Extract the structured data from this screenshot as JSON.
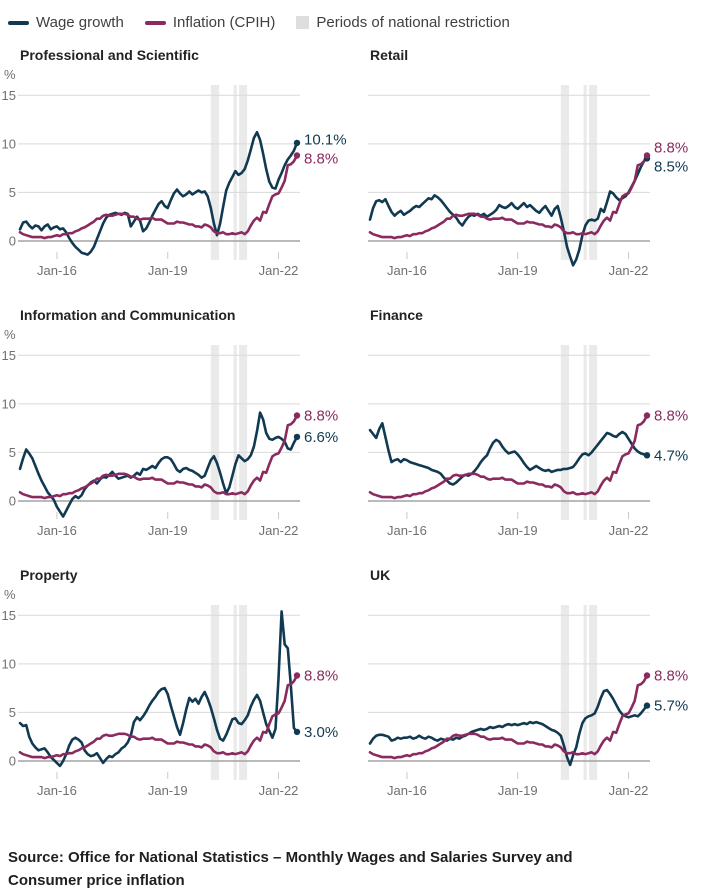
{
  "legend": {
    "items": [
      {
        "label": "Wage growth",
        "type": "line",
        "color": "#113a52"
      },
      {
        "label": "Inflation (CPIH)",
        "type": "line",
        "color": "#8a2a5e"
      },
      {
        "label": "Periods of national restriction",
        "type": "box",
        "color": "#dedede"
      }
    ]
  },
  "source": {
    "text": "Source: Office for National Statistics – Monthly Wages and Salaries Survey and Consumer price inflation"
  },
  "chart_data": {
    "type": "line",
    "x_unit": "month",
    "x_start": "2015-01",
    "x_end": "2022-07",
    "x_tick_labels": [
      "Jan-16",
      "Jan-19",
      "Jan-22"
    ],
    "x_tick_month_index": [
      12,
      48,
      84
    ],
    "y_ticks": [
      0,
      5,
      10,
      15
    ],
    "y_unit": "%",
    "ylim": [
      -2.8,
      16.5
    ],
    "grid": true,
    "legend_position": "top",
    "colors": {
      "wage": "#113a52",
      "inflation": "#8a2a5e",
      "band": "#eaeaea",
      "grid": "#d9d9d9",
      "zero_line": "#a3a3a3",
      "tick_text": "#707071"
    },
    "restriction_bands_month_index": [
      [
        62,
        64.7
      ],
      [
        69.4,
        70.4
      ],
      [
        71.2,
        73.8
      ]
    ],
    "inflation": {
      "name": "Inflation (CPIH)",
      "end_label": "8.8%",
      "values": [
        0.9,
        0.7,
        0.6,
        0.5,
        0.4,
        0.4,
        0.4,
        0.4,
        0.3,
        0.4,
        0.4,
        0.5,
        0.6,
        0.5,
        0.7,
        0.7,
        0.8,
        0.8,
        1.0,
        1.1,
        1.3,
        1.4,
        1.6,
        1.8,
        2.0,
        2.3,
        2.3,
        2.6,
        2.7,
        2.6,
        2.6,
        2.7,
        2.8,
        2.8,
        2.8,
        2.7,
        2.5,
        2.5,
        2.3,
        2.2,
        2.3,
        2.3,
        2.3,
        2.4,
        2.2,
        2.2,
        2.2,
        2.0,
        1.8,
        1.8,
        1.8,
        2.0,
        1.9,
        1.9,
        1.8,
        1.7,
        1.7,
        1.5,
        1.5,
        1.4,
        1.7,
        1.6,
        1.4,
        1.0,
        0.8,
        0.8,
        0.9,
        0.7,
        0.7,
        0.8,
        0.7,
        0.8,
        0.9,
        0.7,
        1.0,
        1.6,
        2.1,
        2.4,
        2.1,
        3.0,
        2.9,
        3.8,
        4.6,
        4.8,
        4.9,
        5.5,
        6.2,
        7.8,
        7.9,
        8.2,
        8.8
      ]
    },
    "panels": [
      {
        "title": "Professional and Scientific",
        "y_axis": true,
        "inflation_end_label": "8.8%",
        "wage": {
          "name": "Wage growth",
          "end_label": "10.1%",
          "values": [
            1.2,
            1.9,
            2.0,
            1.6,
            1.3,
            1.6,
            1.5,
            1.1,
            1.5,
            1.7,
            1.2,
            1.4,
            1.5,
            1.2,
            1.3,
            0.9,
            0.3,
            -0.2,
            -0.6,
            -0.9,
            -1.2,
            -1.3,
            -1.4,
            -1.1,
            -0.6,
            0.2,
            1.0,
            1.8,
            2.4,
            2.7,
            2.8,
            2.9,
            2.8,
            2.7,
            2.9,
            2.8,
            1.5,
            2.0,
            2.5,
            2.1,
            1.0,
            1.3,
            1.9,
            2.6,
            3.2,
            3.8,
            4.1,
            3.6,
            3.4,
            4.2,
            4.9,
            5.3,
            4.9,
            4.6,
            4.8,
            5.1,
            4.8,
            5.0,
            5.2,
            5.0,
            5.1,
            4.6,
            3.4,
            1.8,
            0.6,
            1.8,
            3.5,
            5.2,
            6.0,
            6.6,
            7.2,
            6.8,
            7.0,
            7.4,
            8.3,
            9.4,
            10.6,
            11.2,
            10.4,
            9.0,
            7.4,
            6.1,
            5.5,
            5.4,
            6.3,
            7.0,
            7.8,
            8.4,
            8.8,
            9.3,
            10.1
          ]
        }
      },
      {
        "title": "Retail",
        "y_axis": false,
        "inflation_end_label": "8.8%",
        "wage": {
          "name": "Wage growth",
          "end_label": "8.5%",
          "values": [
            2.2,
            3.4,
            4.1,
            4.2,
            4.0,
            4.3,
            3.6,
            3.0,
            2.6,
            2.9,
            3.1,
            2.7,
            2.9,
            3.1,
            3.4,
            3.6,
            3.5,
            3.8,
            4.1,
            4.4,
            4.3,
            4.7,
            4.5,
            4.2,
            3.8,
            3.4,
            3.0,
            2.7,
            2.4,
            1.9,
            1.6,
            2.1,
            2.5,
            2.7,
            2.6,
            2.8,
            2.6,
            2.8,
            2.5,
            2.7,
            2.9,
            3.2,
            3.7,
            3.5,
            3.4,
            3.6,
            3.9,
            3.5,
            3.3,
            3.6,
            3.9,
            3.5,
            3.7,
            3.4,
            3.1,
            2.9,
            3.3,
            3.6,
            3.1,
            2.6,
            3.3,
            3.6,
            2.4,
            1.0,
            -0.6,
            -1.6,
            -2.5,
            -1.9,
            -0.9,
            0.6,
            1.6,
            2.1,
            2.2,
            2.1,
            2.3,
            3.3,
            3.0,
            4.0,
            5.1,
            4.9,
            4.5,
            4.2,
            4.4,
            4.6,
            5.0,
            5.6,
            6.2,
            6.9,
            7.6,
            8.2,
            8.5
          ]
        }
      },
      {
        "title": "Information and Communication",
        "y_axis": true,
        "inflation_end_label": "8.8%",
        "wage": {
          "name": "Wage growth",
          "end_label": "6.6%",
          "values": [
            3.3,
            4.4,
            5.3,
            4.9,
            4.4,
            3.6,
            2.8,
            2.1,
            1.5,
            0.9,
            0.5,
            0.1,
            -0.6,
            -1.1,
            -1.6,
            -1.0,
            -0.4,
            0.2,
            0.5,
            0.3,
            0.6,
            1.2,
            1.6,
            1.9,
            2.1,
            1.8,
            2.2,
            2.5,
            2.4,
            2.7,
            3.0,
            2.6,
            2.3,
            2.4,
            2.5,
            2.6,
            2.4,
            2.6,
            2.9,
            2.7,
            3.3,
            3.2,
            3.4,
            3.6,
            3.4,
            3.9,
            4.3,
            4.5,
            4.5,
            4.3,
            3.8,
            3.2,
            3.0,
            3.3,
            3.4,
            3.2,
            3.1,
            2.9,
            2.7,
            2.4,
            2.6,
            3.4,
            4.2,
            4.6,
            3.9,
            2.9,
            1.8,
            0.8,
            1.4,
            2.6,
            3.8,
            4.7,
            4.4,
            4.1,
            4.3,
            4.7,
            5.6,
            7.2,
            9.1,
            8.4,
            7.0,
            6.4,
            6.3,
            6.5,
            6.6,
            6.4,
            6.1,
            5.4,
            5.3,
            6.0,
            6.6
          ]
        }
      },
      {
        "title": "Finance",
        "y_axis": false,
        "inflation_end_label": "8.8%",
        "wage": {
          "name": "Wage growth",
          "end_label": "4.7%",
          "values": [
            7.3,
            6.9,
            6.5,
            7.4,
            8.0,
            6.6,
            5.2,
            4.0,
            4.2,
            4.3,
            4.0,
            4.3,
            4.2,
            4.0,
            3.9,
            3.8,
            3.7,
            3.6,
            3.5,
            3.4,
            3.2,
            3.1,
            3.0,
            2.8,
            2.4,
            2.1,
            1.8,
            1.7,
            1.9,
            2.2,
            2.5,
            2.7,
            2.6,
            2.8,
            3.1,
            3.5,
            4.0,
            4.4,
            4.7,
            5.4,
            6.0,
            6.3,
            6.1,
            5.6,
            5.2,
            4.9,
            5.0,
            5.1,
            4.8,
            4.4,
            3.9,
            3.5,
            3.2,
            3.4,
            3.6,
            3.4,
            3.2,
            3.1,
            3.2,
            3.0,
            3.1,
            3.2,
            3.2,
            3.3,
            3.3,
            3.4,
            3.5,
            3.9,
            4.4,
            4.8,
            4.9,
            4.7,
            5.0,
            5.4,
            5.8,
            6.2,
            6.6,
            7.0,
            6.9,
            6.7,
            6.6,
            6.9,
            7.1,
            6.9,
            6.4,
            5.9,
            5.4,
            5.1,
            4.9,
            4.8,
            4.7
          ]
        }
      },
      {
        "title": "Property",
        "y_axis": true,
        "inflation_end_label": "8.8%",
        "wage": {
          "name": "Wage growth",
          "end_label": "3.0%",
          "values": [
            3.9,
            3.6,
            3.7,
            2.5,
            1.8,
            1.4,
            1.1,
            1.2,
            1.3,
            0.9,
            0.4,
            0.1,
            -0.2,
            -0.5,
            0.0,
            0.7,
            1.6,
            2.2,
            2.4,
            2.2,
            1.9,
            1.1,
            0.7,
            0.5,
            0.6,
            0.8,
            0.3,
            -0.2,
            0.2,
            0.5,
            0.4,
            0.7,
            0.9,
            1.3,
            1.5,
            1.9,
            2.6,
            4.0,
            4.5,
            4.2,
            4.6,
            5.1,
            5.7,
            6.2,
            6.6,
            7.1,
            7.4,
            7.5,
            6.9,
            5.7,
            4.6,
            3.5,
            2.7,
            3.9,
            5.3,
            6.5,
            6.1,
            6.4,
            5.9,
            6.6,
            7.1,
            6.4,
            5.5,
            4.4,
            3.2,
            2.3,
            2.1,
            2.7,
            3.5,
            4.3,
            4.4,
            3.9,
            3.8,
            4.2,
            4.7,
            5.6,
            6.3,
            6.8,
            6.2,
            5.0,
            3.8,
            3.1,
            2.4,
            3.3,
            8.5,
            15.4,
            12.0,
            11.6,
            7.8,
            3.4,
            3.0
          ]
        }
      },
      {
        "title": "UK",
        "y_axis": false,
        "inflation_end_label": "8.8%",
        "wage": {
          "name": "Wage growth",
          "end_label": "5.7%",
          "values": [
            1.8,
            2.3,
            2.6,
            2.7,
            2.7,
            2.6,
            2.5,
            2.1,
            2.2,
            2.4,
            2.3,
            2.4,
            2.4,
            2.5,
            2.3,
            2.4,
            2.6,
            2.4,
            2.3,
            2.5,
            2.4,
            2.2,
            2.1,
            2.3,
            2.2,
            2.1,
            2.3,
            2.2,
            2.4,
            2.3,
            2.5,
            2.6,
            2.8,
            3.0,
            3.1,
            3.2,
            3.3,
            3.2,
            3.3,
            3.5,
            3.4,
            3.5,
            3.6,
            3.5,
            3.7,
            3.8,
            3.7,
            3.8,
            3.7,
            3.8,
            3.9,
            3.8,
            4.0,
            3.9,
            4.0,
            3.9,
            3.8,
            3.6,
            3.4,
            3.2,
            3.1,
            2.9,
            2.6,
            1.6,
            0.4,
            -0.4,
            0.6,
            1.4,
            2.8,
            3.9,
            4.4,
            4.6,
            4.7,
            4.9,
            5.6,
            6.5,
            7.2,
            7.3,
            6.9,
            6.4,
            5.8,
            5.2,
            4.8,
            4.6,
            4.5,
            4.6,
            4.7,
            4.6,
            4.9,
            5.3,
            5.7
          ]
        }
      }
    ]
  }
}
